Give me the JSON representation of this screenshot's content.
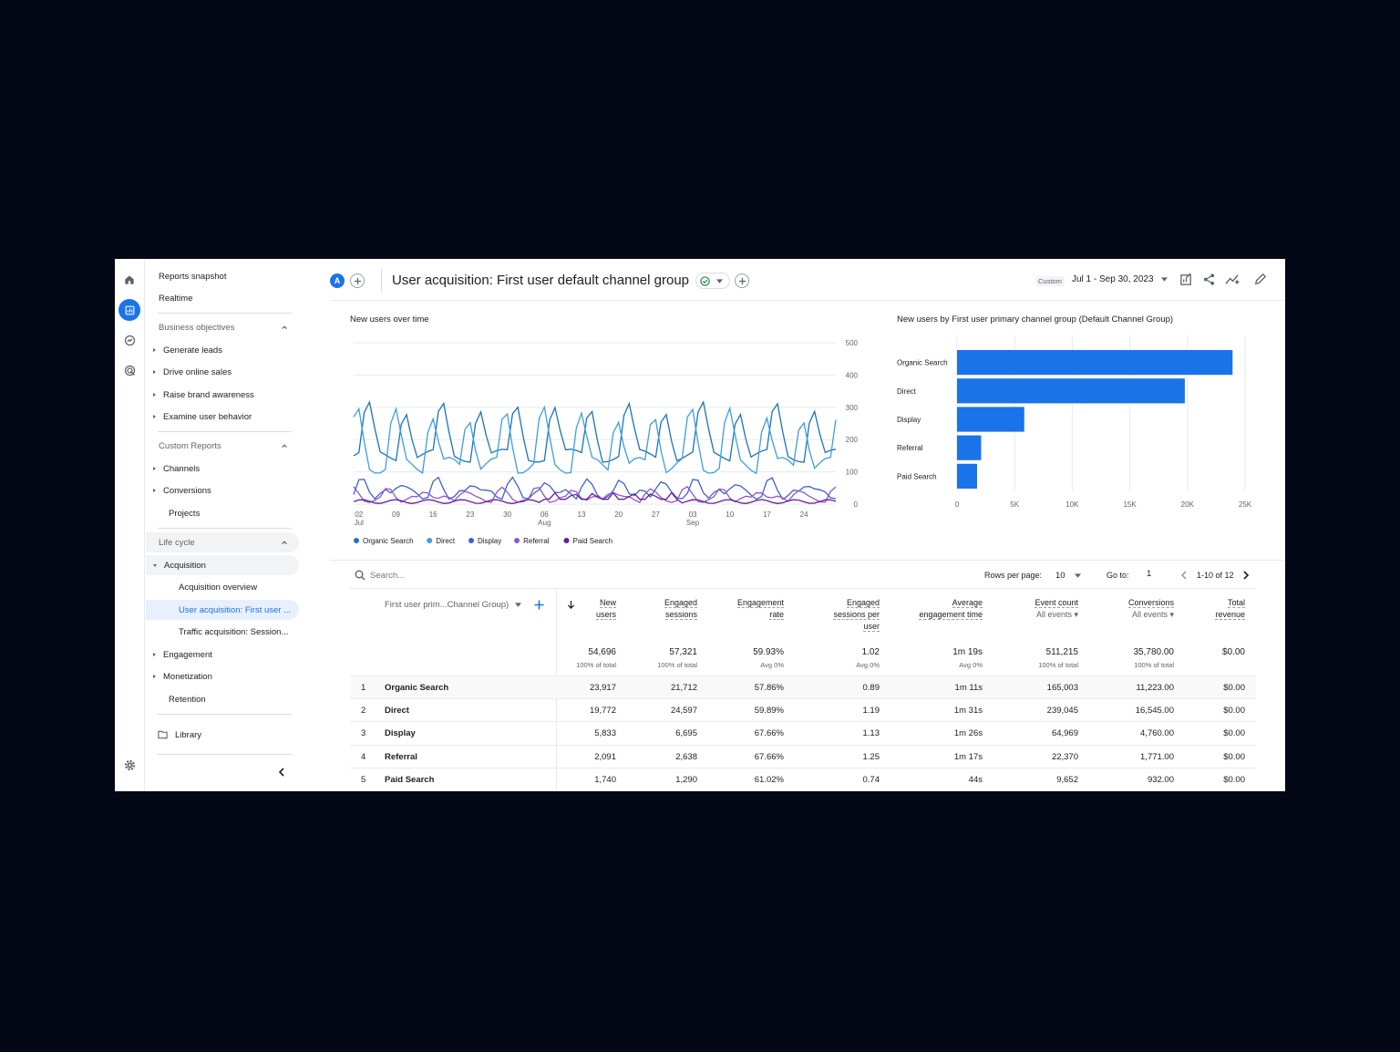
{
  "nav": {
    "reports_snapshot": "Reports snapshot",
    "realtime": "Realtime",
    "business_objectives": "Business objectives",
    "generate_leads": "Generate leads",
    "drive_online_sales": "Drive online sales",
    "raise_brand_awareness": "Raise brand awareness",
    "examine_user_behavior": "Examine user behavior",
    "custom_reports": "Custom Reports",
    "channels": "Channels",
    "conversions": "Conversions",
    "projects": "Projects",
    "life_cycle": "Life cycle",
    "acquisition": "Acquisition",
    "acquisition_overview": "Acquisition overview",
    "user_acquisition": "User acquisition: First user ...",
    "traffic_acquisition": "Traffic acquisition: Session...",
    "engagement": "Engagement",
    "monetization": "Monetization",
    "retention": "Retention",
    "library": "Library"
  },
  "header": {
    "avatar_letter": "A",
    "title": "User acquisition: First user default channel group",
    "date_badge": "Custom",
    "date_range": "Jul 1 - Sep 30, 2023"
  },
  "line_chart": {
    "title": "New users over time",
    "y_ticks": [
      "500",
      "400",
      "300",
      "200",
      "100",
      "0"
    ],
    "ymax": 500,
    "x_ticks": [
      {
        "day": "02",
        "month": "Jul",
        "i": 1
      },
      {
        "day": "09",
        "month": "",
        "i": 8
      },
      {
        "day": "16",
        "month": "",
        "i": 15
      },
      {
        "day": "23",
        "month": "",
        "i": 22
      },
      {
        "day": "30",
        "month": "",
        "i": 29
      },
      {
        "day": "06",
        "month": "Aug",
        "i": 36
      },
      {
        "day": "13",
        "month": "",
        "i": 43
      },
      {
        "day": "20",
        "month": "",
        "i": 50
      },
      {
        "day": "27",
        "month": "",
        "i": 57
      },
      {
        "day": "03",
        "month": "Sep",
        "i": 64
      },
      {
        "day": "10",
        "month": "",
        "i": 71
      },
      {
        "day": "17",
        "month": "",
        "i": 78
      },
      {
        "day": "24",
        "month": "",
        "i": 85
      }
    ],
    "legend": [
      {
        "name": "Organic Search",
        "color": "#1a73b8"
      },
      {
        "name": "Direct",
        "color": "#3c9ee0"
      },
      {
        "name": "Display",
        "color": "#3d5fd6"
      },
      {
        "name": "Referral",
        "color": "#8e56d0"
      },
      {
        "name": "Paid Search",
        "color": "#6a1b9a"
      }
    ]
  },
  "bar_chart": {
    "title": "New users by First user primary channel group (Default Channel Group)",
    "categories": [
      "Organic Search",
      "Direct",
      "Display",
      "Referral",
      "Paid Search"
    ],
    "values": [
      23917,
      19772,
      5833,
      2091,
      1740
    ],
    "xmax": 25000,
    "x_ticks": [
      "0",
      "5K",
      "10K",
      "15K",
      "20K",
      "25K"
    ],
    "color": "#1a73e8"
  },
  "table": {
    "search_placeholder": "Search...",
    "rows_per_page_label": "Rows per page:",
    "rows_per_page": "10",
    "goto_label": "Go to:",
    "goto_value": "1",
    "pagination": "1-10 of 12",
    "dimension_header": "First user prim...Channel Group)",
    "columns": [
      {
        "l1": "New",
        "l2": "users",
        "l3": "",
        "sub": "",
        "total": "54,696",
        "total_sub": "100% of total"
      },
      {
        "l1": "Engaged",
        "l2": "sessions",
        "l3": "",
        "sub": "",
        "total": "57,321",
        "total_sub": "100% of total"
      },
      {
        "l1": "Engagement",
        "l2": "rate",
        "l3": "",
        "sub": "",
        "total": "59.93%",
        "total_sub": "Avg 0%"
      },
      {
        "l1": "Engaged",
        "l2": "sessions per",
        "l3": "user",
        "sub": "",
        "total": "1.02",
        "total_sub": "Avg 0%"
      },
      {
        "l1": "Average",
        "l2": "engagement time",
        "l3": "",
        "sub": "",
        "total": "1m 19s",
        "total_sub": "Avg 0%"
      },
      {
        "l1": "Event count",
        "l2": "",
        "l3": "",
        "sub": "All events",
        "total": "511,215",
        "total_sub": "100% of total"
      },
      {
        "l1": "Conversions",
        "l2": "",
        "l3": "",
        "sub": "All events",
        "total": "35,780.00",
        "total_sub": "100% of total"
      },
      {
        "l1": "Total",
        "l2": "revenue",
        "l3": "",
        "sub": "",
        "total": "$0.00",
        "total_sub": ""
      }
    ],
    "rows": [
      {
        "n": "1",
        "name": "Organic Search",
        "cells": [
          "23,917",
          "21,712",
          "57.86%",
          "0.89",
          "1m 11s",
          "165,003",
          "11,223.00",
          "$0.00"
        ]
      },
      {
        "n": "2",
        "name": "Direct",
        "cells": [
          "19,772",
          "24,597",
          "59.89%",
          "1.19",
          "1m 31s",
          "239,045",
          "16,545.00",
          "$0.00"
        ]
      },
      {
        "n": "3",
        "name": "Display",
        "cells": [
          "5,833",
          "6,695",
          "67.66%",
          "1.13",
          "1m 26s",
          "64,969",
          "4,760.00",
          "$0.00"
        ]
      },
      {
        "n": "4",
        "name": "Referral",
        "cells": [
          "2,091",
          "2,638",
          "67.66%",
          "1.25",
          "1m 17s",
          "22,370",
          "1,771.00",
          "$0.00"
        ]
      },
      {
        "n": "5",
        "name": "Paid Search",
        "cells": [
          "1,740",
          "1,290",
          "61.02%",
          "0.74",
          "44s",
          "9,652",
          "932.00",
          "$0.00"
        ]
      }
    ]
  }
}
